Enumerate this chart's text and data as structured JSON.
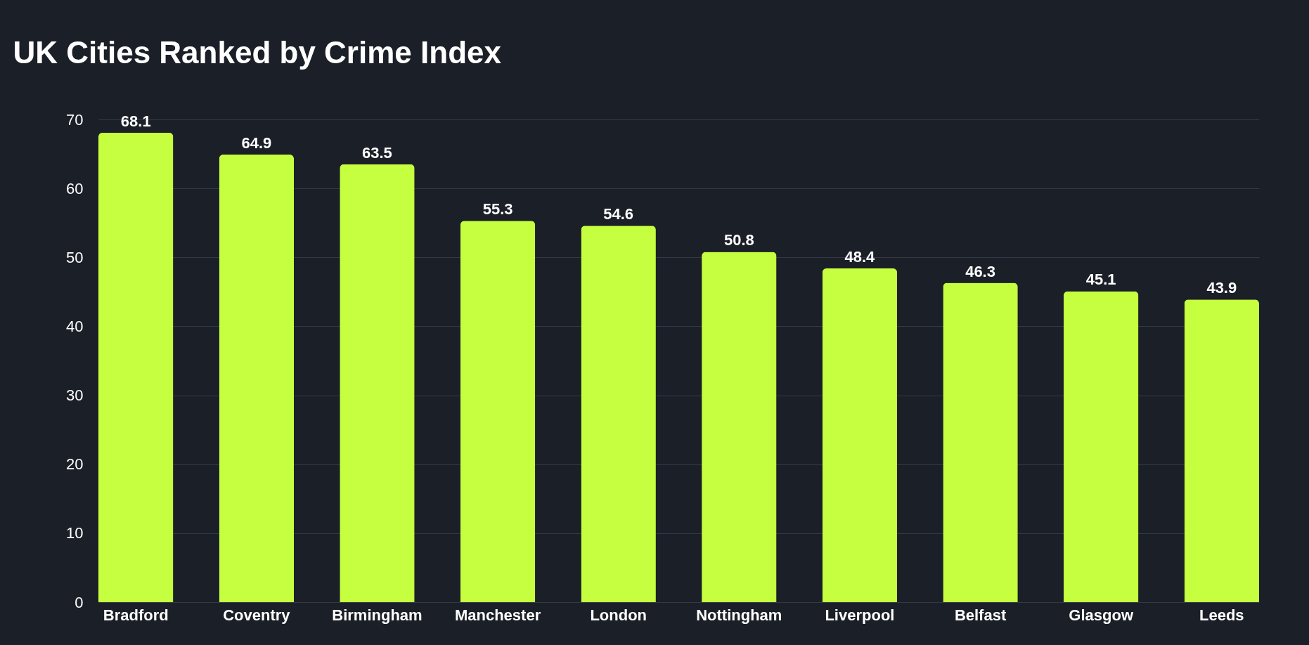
{
  "chart_data": {
    "type": "bar",
    "title": "UK Cities Ranked by Crime Index",
    "categories": [
      "Bradford",
      "Coventry",
      "Birmingham",
      "Manchester",
      "London",
      "Nottingham",
      "Liverpool",
      "Belfast",
      "Glasgow",
      "Leeds"
    ],
    "values": [
      68.1,
      64.9,
      63.5,
      55.3,
      54.6,
      50.8,
      48.4,
      46.3,
      45.1,
      43.9
    ],
    "color": "#c5ff3f",
    "ylim": [
      0,
      70
    ],
    "yticks": [
      0,
      10,
      20,
      30,
      40,
      50,
      60,
      70
    ],
    "grid": "y",
    "data_labels": true
  }
}
